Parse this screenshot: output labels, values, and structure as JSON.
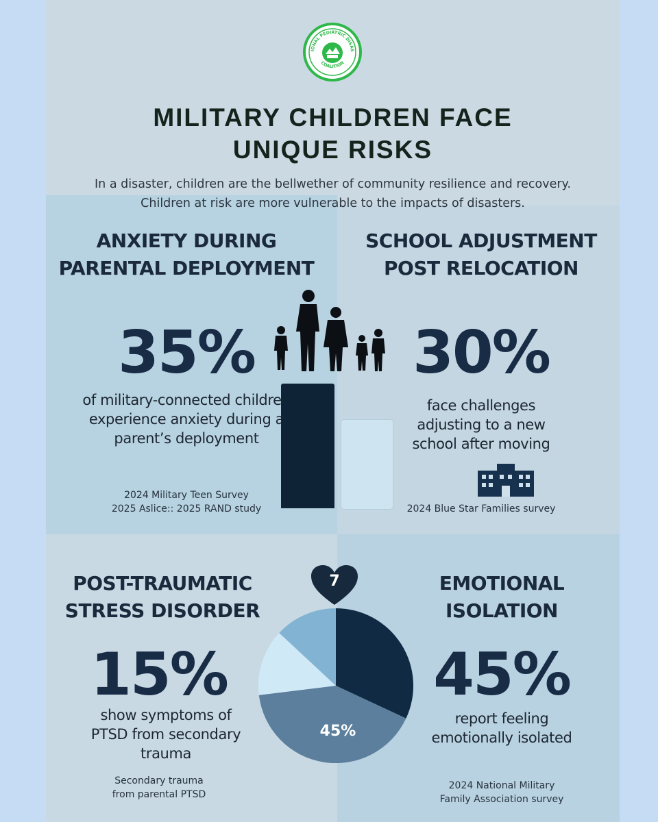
{
  "header": {
    "logo_text_top": "NATIONAL PEDIATRIC DISASTER",
    "logo_text_bottom": "COALITION",
    "title": "MILITARY CHILDREN FACE UNIQUE RISKS",
    "subtitle": "In a disaster, children are the bellwether of community resilience and recovery. Children at risk are more vulnerable to the impacts of disasters."
  },
  "sections": [
    {
      "heading": "ANXIETY DURING PARENTAL DEPLOYMENT",
      "stat": "35%",
      "description": "of military-connected children experience anxiety during a parent’s deployment",
      "source_line1": "2024 Military Teen Survey",
      "source_line2": "2025 Aslice:: 2025 RAND study"
    },
    {
      "heading": "SCHOOL ADJUSTMENT POST RELOCATION",
      "stat": "30%",
      "description": "face challenges adjusting to a new school after moving",
      "source_line1": "2024 Blue Star Families survey"
    },
    {
      "heading": "POST-TRAUMATIC STRESS DISORDER",
      "stat": "15%",
      "description": "show symptoms of PTSD from secondary trauma",
      "source_line1": "Secondary trauma",
      "source_line2": "from parental PTSD"
    },
    {
      "heading": "EMOTIONAL ISOLATION",
      "stat": "45%",
      "description": "report feeling emotionally isolated",
      "source_line1": "2024 National Military",
      "source_line2": "Family Association survey"
    }
  ],
  "pie_label": "45%",
  "heart_glyph": "7",
  "icons": [
    "coalition-logo-icon",
    "family-silhouette-icon",
    "school-building-icon",
    "heart-icon"
  ],
  "colors": {
    "page_bg": "#c6dcf5",
    "sheet_bg": "#cbd9e2",
    "navy": "#182c46",
    "logo_green": "#2fb84a"
  }
}
